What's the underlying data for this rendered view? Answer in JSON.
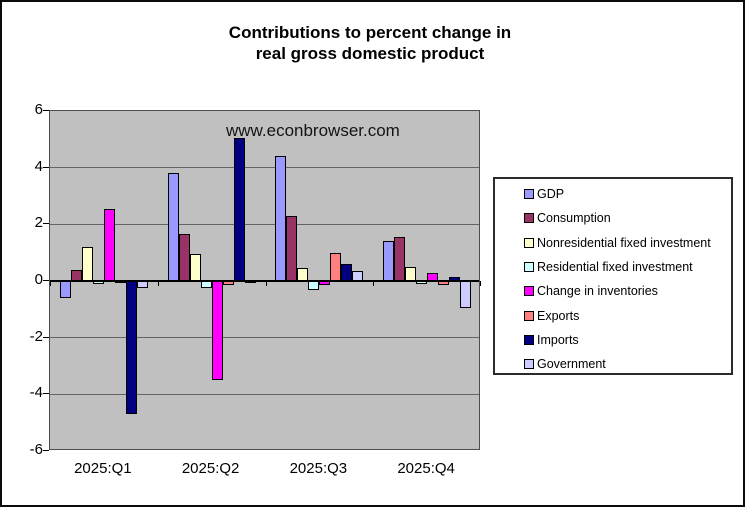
{
  "title": {
    "line1": "Contributions to percent change in",
    "line2": "real gross domestic product"
  },
  "watermark": "www.econbrowser.com",
  "chart_data": {
    "type": "bar",
    "title": "Contributions to percent change in real gross domestic product",
    "categories": [
      "2025:Q1",
      "2025:Q2",
      "2025:Q3",
      "2025:Q4"
    ],
    "series": [
      {
        "name": "GDP",
        "color": "#9999FF",
        "values": [
          -0.6,
          3.8,
          4.4,
          1.4
        ]
      },
      {
        "name": "Consumption",
        "color": "#993366",
        "values": [
          0.4,
          1.65,
          2.3,
          1.55
        ]
      },
      {
        "name": "Nonresidential fixed investment",
        "color": "#FFFFCC",
        "values": [
          1.2,
          0.95,
          0.45,
          0.5
        ]
      },
      {
        "name": "Residential fixed investment",
        "color": "#CCFFFF",
        "values": [
          -0.1,
          -0.25,
          -0.3,
          -0.1
        ]
      },
      {
        "name": "Change in inventories",
        "color": "#FF00FF",
        "values": [
          2.55,
          -3.5,
          -0.15,
          0.3
        ]
      },
      {
        "name": "Exports",
        "color": "#FF8080",
        "values": [
          -0.05,
          -0.15,
          1.0,
          -0.15
        ]
      },
      {
        "name": "Imports",
        "color": "#000080",
        "values": [
          -4.7,
          5.05,
          0.6,
          0.15
        ]
      },
      {
        "name": "Government",
        "color": "#CCCCFF",
        "values": [
          -0.25,
          -0.05,
          0.35,
          -0.95
        ]
      }
    ],
    "ylim": [
      -6,
      6
    ],
    "yticks": [
      6,
      4,
      2,
      0,
      -2,
      -4,
      -6
    ],
    "grid": true,
    "legend_position": "right",
    "plot_bg": "#C0C0C0",
    "bar_border": "#000000",
    "xlabel": "",
    "ylabel": ""
  }
}
